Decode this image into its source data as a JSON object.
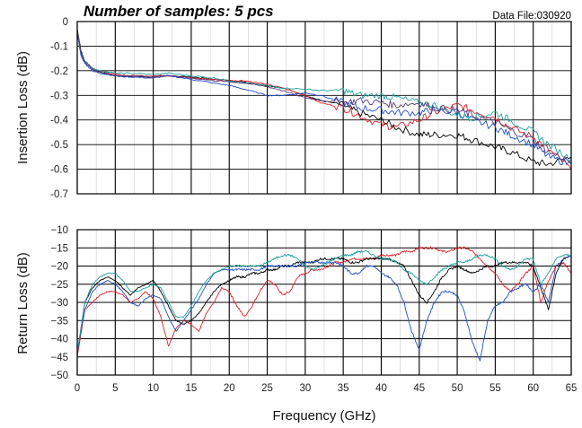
{
  "chart_data": [
    {
      "type": "line",
      "title": "Number of samples: 5 pcs",
      "annotation": "Data File:030920",
      "xlabel": "",
      "ylabel": "Insertion Loss (dB)",
      "xlim": [
        0,
        65
      ],
      "ylim": [
        -0.7,
        0
      ],
      "x_ticks": [
        0,
        5,
        10,
        15,
        20,
        25,
        30,
        35,
        40,
        45,
        50,
        55,
        60,
        65
      ],
      "y_ticks": [
        "0",
        "-0.1",
        "-0.2",
        "-0.3",
        "-0.4",
        "-0.5",
        "-0.6",
        "-0.7"
      ],
      "y_tick_values": [
        0,
        -0.1,
        -0.2,
        -0.3,
        -0.4,
        -0.5,
        -0.6,
        -0.7
      ],
      "grid": true,
      "x": [
        0,
        0.5,
        1,
        2,
        3,
        5,
        7,
        10,
        12,
        15,
        18,
        20,
        22,
        25,
        27,
        30,
        32,
        35,
        37,
        40,
        42,
        45,
        47,
        50,
        52,
        55,
        57,
        60,
        62,
        65
      ],
      "series": [
        {
          "color": "#000000",
          "values": [
            -0.03,
            -0.12,
            -0.16,
            -0.19,
            -0.205,
            -0.22,
            -0.225,
            -0.225,
            -0.22,
            -0.225,
            -0.235,
            -0.24,
            -0.245,
            -0.26,
            -0.27,
            -0.3,
            -0.32,
            -0.34,
            -0.37,
            -0.4,
            -0.43,
            -0.46,
            -0.46,
            -0.46,
            -0.48,
            -0.51,
            -0.53,
            -0.57,
            -0.58,
            -0.55
          ]
        },
        {
          "color": "#e0202a",
          "values": [
            -0.04,
            -0.13,
            -0.16,
            -0.19,
            -0.2,
            -0.215,
            -0.22,
            -0.22,
            -0.22,
            -0.23,
            -0.235,
            -0.24,
            -0.24,
            -0.255,
            -0.27,
            -0.3,
            -0.33,
            -0.35,
            -0.38,
            -0.42,
            -0.43,
            -0.4,
            -0.37,
            -0.34,
            -0.36,
            -0.39,
            -0.43,
            -0.47,
            -0.52,
            -0.6
          ]
        },
        {
          "color": "#2050c8",
          "values": [
            -0.05,
            -0.14,
            -0.17,
            -0.2,
            -0.21,
            -0.22,
            -0.225,
            -0.23,
            -0.22,
            -0.235,
            -0.25,
            -0.26,
            -0.275,
            -0.3,
            -0.3,
            -0.29,
            -0.3,
            -0.33,
            -0.35,
            -0.36,
            -0.37,
            -0.37,
            -0.36,
            -0.37,
            -0.4,
            -0.43,
            -0.46,
            -0.5,
            -0.55,
            -0.58
          ]
        },
        {
          "color": "#20a0a0",
          "values": [
            -0.04,
            -0.13,
            -0.16,
            -0.19,
            -0.2,
            -0.21,
            -0.21,
            -0.215,
            -0.21,
            -0.22,
            -0.23,
            -0.24,
            -0.25,
            -0.26,
            -0.27,
            -0.275,
            -0.28,
            -0.28,
            -0.3,
            -0.3,
            -0.31,
            -0.33,
            -0.34,
            -0.38,
            -0.39,
            -0.37,
            -0.4,
            -0.45,
            -0.5,
            -0.56
          ]
        },
        {
          "color": "#5a3a7a",
          "values": [
            -0.04,
            -0.13,
            -0.165,
            -0.195,
            -0.205,
            -0.22,
            -0.22,
            -0.225,
            -0.22,
            -0.23,
            -0.24,
            -0.245,
            -0.25,
            -0.265,
            -0.28,
            -0.31,
            -0.32,
            -0.33,
            -0.32,
            -0.33,
            -0.34,
            -0.33,
            -0.35,
            -0.36,
            -0.38,
            -0.41,
            -0.44,
            -0.48,
            -0.53,
            -0.57
          ]
        }
      ]
    },
    {
      "type": "line",
      "title": "",
      "xlabel": "Frequency (GHz)",
      "ylabel": "Return Loss (dB)",
      "xlim": [
        0,
        65
      ],
      "ylim": [
        -50,
        -10
      ],
      "x_ticks": [
        0,
        5,
        10,
        15,
        20,
        25,
        30,
        35,
        40,
        45,
        50,
        55,
        60,
        65
      ],
      "y_ticks": [
        "−10",
        "−15",
        "−20",
        "−25",
        "−30",
        "−35",
        "−40",
        "−45",
        "−50"
      ],
      "y_tick_values": [
        -10,
        -15,
        -20,
        -25,
        -30,
        -35,
        -40,
        -45,
        -50
      ],
      "grid": true,
      "x": [
        0,
        1,
        2,
        3,
        4,
        5,
        6,
        7,
        8,
        9,
        10,
        11,
        12,
        13,
        14,
        15,
        16,
        17,
        18,
        19,
        20,
        21,
        22,
        23,
        24,
        25,
        26,
        27,
        28,
        29,
        30,
        31,
        32,
        33,
        34,
        35,
        36,
        37,
        38,
        39,
        40,
        41,
        42,
        43,
        44,
        45,
        46,
        47,
        48,
        49,
        50,
        51,
        52,
        53,
        54,
        55,
        56,
        57,
        58,
        59,
        60,
        61,
        62,
        63,
        64,
        65
      ],
      "series": [
        {
          "color": "#e0202a",
          "values": [
            -45,
            -32,
            -30,
            -28,
            -27,
            -27,
            -28,
            -30,
            -29,
            -27,
            -29,
            -34,
            -42,
            -37,
            -35,
            -36,
            -38,
            -33,
            -30,
            -26,
            -27,
            -31,
            -34,
            -31,
            -27,
            -24,
            -25,
            -28,
            -27,
            -23,
            -22,
            -21,
            -21,
            -20,
            -19,
            -19,
            -18,
            -18,
            -18,
            -18,
            -17,
            -17,
            -17,
            -16,
            -16,
            -15,
            -15,
            -15,
            -16,
            -16,
            -15,
            -15,
            -16,
            -18,
            -20,
            -22,
            -25,
            -27,
            -25,
            -22,
            -20,
            -30,
            -24,
            -20,
            -19,
            -22
          ]
        },
        {
          "color": "#000000",
          "values": [
            -44,
            -30,
            -26,
            -24,
            -23,
            -24,
            -26,
            -28,
            -26,
            -25,
            -24,
            -27,
            -31,
            -35,
            -36,
            -35,
            -33,
            -30,
            -27,
            -25,
            -24,
            -23,
            -23,
            -22,
            -22,
            -21,
            -21,
            -20,
            -20,
            -19,
            -19,
            -19,
            -18,
            -18,
            -18,
            -18,
            -19,
            -19,
            -18,
            -18,
            -18,
            -18,
            -19,
            -20,
            -24,
            -28,
            -30,
            -27,
            -23,
            -21,
            -20,
            -21,
            -22,
            -21,
            -20,
            -20,
            -19,
            -19,
            -19,
            -19,
            -20,
            -26,
            -32,
            -22,
            -18,
            -17
          ]
        },
        {
          "color": "#2050c8",
          "values": [
            -44,
            -32,
            -27,
            -25,
            -24,
            -25,
            -27,
            -30,
            -31,
            -29,
            -28,
            -29,
            -34,
            -38,
            -35,
            -32,
            -29,
            -25,
            -22,
            -21,
            -21,
            -21,
            -21,
            -21,
            -21,
            -20,
            -20,
            -20,
            -20,
            -20,
            -19,
            -19,
            -19,
            -19,
            -19,
            -20,
            -22,
            -22,
            -20,
            -20,
            -22,
            -23,
            -25,
            -30,
            -38,
            -43,
            -35,
            -30,
            -27,
            -27,
            -28,
            -33,
            -41,
            -46,
            -35,
            -31,
            -30,
            -27,
            -26,
            -25,
            -27,
            -25,
            -30,
            -20,
            -18,
            -17
          ]
        },
        {
          "color": "#20a0a0",
          "values": [
            -44,
            -30,
            -25,
            -23,
            -22,
            -22,
            -24,
            -27,
            -27,
            -26,
            -25,
            -26,
            -30,
            -34,
            -34,
            -31,
            -27,
            -24,
            -22,
            -21,
            -20,
            -20,
            -20,
            -20,
            -20,
            -19,
            -18,
            -17,
            -17,
            -18,
            -20,
            -21,
            -20,
            -19,
            -18,
            -17,
            -17,
            -16,
            -16,
            -17,
            -18,
            -18,
            -19,
            -21,
            -22,
            -24,
            -25,
            -23,
            -21,
            -20,
            -19,
            -19,
            -18,
            -17,
            -17,
            -18,
            -20,
            -21,
            -20,
            -18,
            -18,
            -25,
            -22,
            -18,
            -17,
            -17
          ]
        }
      ]
    }
  ]
}
